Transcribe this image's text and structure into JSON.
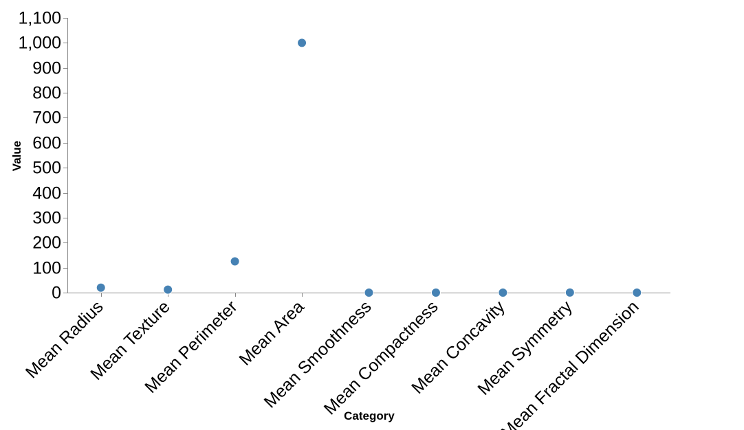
{
  "chart_data": {
    "type": "scatter",
    "categories": [
      "Mean Radius",
      "Mean Texture",
      "Mean Perimeter",
      "Mean Area",
      "Mean Smoothness",
      "Mean Compactness",
      "Mean Concavity",
      "Mean Symmetry",
      "Mean Fractal Dimension"
    ],
    "values": [
      20,
      12,
      125,
      1000,
      0.1,
      0.1,
      0.1,
      0.2,
      0.06
    ],
    "xlabel": "Category",
    "ylabel": "Value",
    "ylim": [
      0,
      1100
    ],
    "yticks": [
      "0",
      "100",
      "200",
      "300",
      "400",
      "500",
      "600",
      "700",
      "800",
      "900",
      "1,000",
      "1,100"
    ],
    "ytick_values": [
      0,
      100,
      200,
      300,
      400,
      500,
      600,
      700,
      800,
      900,
      1000,
      1100
    ],
    "grid": false,
    "colors": {
      "point": "#4682b4",
      "axis": "#888888",
      "text": "#000000"
    }
  }
}
